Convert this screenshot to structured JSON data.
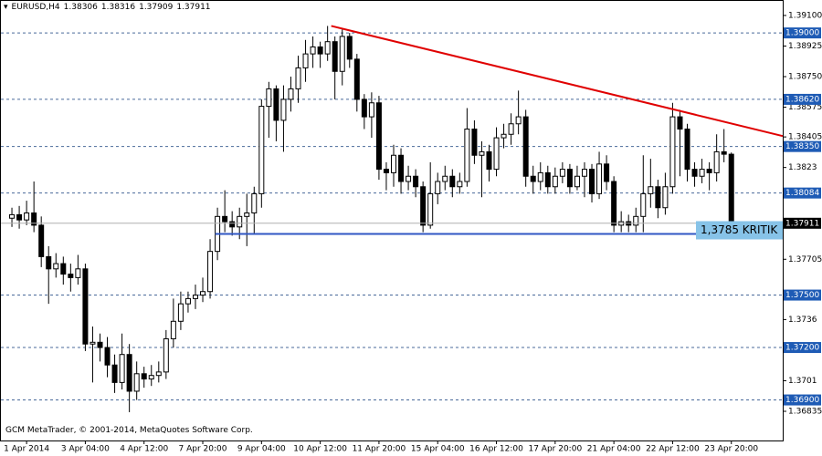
{
  "chart_data": {
    "type": "candlestick",
    "symbol": "EURUSD,H4",
    "footer": "GCM MetaTrader, © 2001-2014, MetaQuotes Software Corp.",
    "x": [
      0,
      1,
      2,
      3,
      4,
      5,
      6,
      7,
      8,
      9,
      10,
      11,
      12,
      13,
      14,
      15,
      16,
      17,
      18,
      19,
      20,
      21,
      22,
      23,
      24,
      25,
      26,
      27,
      28,
      29,
      30,
      31,
      32,
      33,
      34,
      35,
      36,
      37,
      38,
      39,
      40,
      41,
      42,
      43,
      44,
      45,
      46,
      47,
      48,
      49,
      50,
      51,
      52,
      53,
      54,
      55,
      56,
      57,
      58,
      59,
      60,
      61,
      62,
      63,
      64,
      65,
      66,
      67,
      68,
      69,
      70,
      71,
      72,
      73,
      74,
      75,
      76,
      77,
      78,
      79,
      80,
      81,
      82,
      83,
      84,
      85,
      86,
      87,
      88,
      89,
      90,
      91,
      92,
      93,
      94,
      95,
      96,
      97,
      98
    ],
    "open": [
      1.3794,
      1.3796,
      1.3793,
      1.3797,
      1.379,
      1.3772,
      1.3765,
      1.3768,
      1.3762,
      1.376,
      1.3765,
      1.3722,
      1.3723,
      1.372,
      1.371,
      1.37,
      1.3716,
      1.3695,
      1.3705,
      1.3702,
      1.3704,
      1.3706,
      1.3725,
      1.3735,
      1.3745,
      1.3748,
      1.375,
      1.3752,
      1.3775,
      1.3795,
      1.3792,
      1.3789,
      1.3795,
      1.3797,
      1.3808,
      1.3858,
      1.3868,
      1.385,
      1.3862,
      1.3868,
      1.388,
      1.3888,
      1.3892,
      1.3888,
      1.3895,
      1.3878,
      1.3898,
      1.3885,
      1.3862,
      1.3852,
      1.386,
      1.3822,
      1.382,
      1.383,
      1.3815,
      1.3818,
      1.3812,
      1.379,
      1.3808,
      1.3815,
      1.3818,
      1.3812,
      1.3815,
      1.3845,
      1.383,
      1.3832,
      1.3822,
      1.384,
      1.3842,
      1.3848,
      1.3852,
      1.3818,
      1.3815,
      1.382,
      1.3812,
      1.3818,
      1.3822,
      1.3812,
      1.3818,
      1.3822,
      1.3808,
      1.3825,
      1.3815,
      1.379,
      1.3792,
      1.379,
      1.3795,
      1.3808,
      1.3812,
      1.38,
      1.3812,
      1.3852,
      1.3845,
      1.3822,
      1.3818,
      1.3822,
      1.382,
      1.3832,
      1.38306
    ],
    "high": [
      1.38,
      1.3801,
      1.3804,
      1.3815,
      1.3795,
      1.3778,
      1.3774,
      1.3772,
      1.3768,
      1.3773,
      1.3768,
      1.3732,
      1.3728,
      1.3726,
      1.3716,
      1.3728,
      1.3722,
      1.3712,
      1.3709,
      1.371,
      1.3712,
      1.373,
      1.3748,
      1.3752,
      1.3752,
      1.3756,
      1.376,
      1.3782,
      1.38,
      1.381,
      1.3798,
      1.38,
      1.3808,
      1.3812,
      1.3862,
      1.3872,
      1.387,
      1.387,
      1.3875,
      1.3887,
      1.3896,
      1.3898,
      1.3895,
      1.3904,
      1.3898,
      1.3902,
      1.39,
      1.3888,
      1.3865,
      1.3866,
      1.3864,
      1.3826,
      1.3836,
      1.3834,
      1.3824,
      1.3822,
      1.3815,
      1.3826,
      1.382,
      1.3824,
      1.3822,
      1.382,
      1.3857,
      1.385,
      1.3838,
      1.3836,
      1.3846,
      1.3848,
      1.3854,
      1.3867,
      1.3856,
      1.3824,
      1.3826,
      1.3824,
      1.3823,
      1.3826,
      1.3825,
      1.3824,
      1.3826,
      1.3825,
      1.3832,
      1.383,
      1.3818,
      1.3798,
      1.3796,
      1.38,
      1.383,
      1.3828,
      1.3816,
      1.382,
      1.386,
      1.3856,
      1.3848,
      1.3826,
      1.3828,
      1.3826,
      1.3842,
      1.3845,
      1.38316
    ],
    "low": [
      1.3789,
      1.3788,
      1.379,
      1.3786,
      1.3766,
      1.3745,
      1.376,
      1.3756,
      1.3752,
      1.3756,
      1.3718,
      1.37,
      1.3712,
      1.3703,
      1.3694,
      1.3696,
      1.3683,
      1.369,
      1.3697,
      1.3698,
      1.37,
      1.3702,
      1.372,
      1.373,
      1.374,
      1.3742,
      1.3746,
      1.3748,
      1.377,
      1.3786,
      1.3784,
      1.3782,
      1.3778,
      1.3785,
      1.38,
      1.384,
      1.3838,
      1.3832,
      1.3855,
      1.386,
      1.3872,
      1.388,
      1.388,
      1.3884,
      1.3862,
      1.387,
      1.388,
      1.3855,
      1.3845,
      1.384,
      1.3816,
      1.381,
      1.3812,
      1.3808,
      1.381,
      1.3806,
      1.3786,
      1.3788,
      1.3802,
      1.381,
      1.3806,
      1.3808,
      1.3812,
      1.3825,
      1.3806,
      1.3815,
      1.3818,
      1.3834,
      1.3836,
      1.3842,
      1.3812,
      1.3808,
      1.381,
      1.3808,
      1.3808,
      1.3814,
      1.3808,
      1.381,
      1.3806,
      1.3803,
      1.3805,
      1.381,
      1.3786,
      1.3786,
      1.3786,
      1.3786,
      1.3786,
      1.38,
      1.3794,
      1.3796,
      1.3808,
      1.3818,
      1.3815,
      1.3812,
      1.3814,
      1.381,
      1.3815,
      1.3826,
      1.37909
    ],
    "close": [
      1.3796,
      1.3793,
      1.3797,
      1.379,
      1.3772,
      1.3765,
      1.3768,
      1.3762,
      1.376,
      1.3765,
      1.3722,
      1.3723,
      1.372,
      1.371,
      1.37,
      1.3716,
      1.3695,
      1.3705,
      1.3702,
      1.3704,
      1.3706,
      1.3725,
      1.3735,
      1.3745,
      1.3748,
      1.375,
      1.3752,
      1.3775,
      1.3795,
      1.3792,
      1.3789,
      1.3795,
      1.3797,
      1.3808,
      1.3858,
      1.3868,
      1.385,
      1.3862,
      1.3868,
      1.388,
      1.3888,
      1.3892,
      1.3888,
      1.3895,
      1.3878,
      1.3898,
      1.3885,
      1.3862,
      1.3852,
      1.386,
      1.3822,
      1.382,
      1.383,
      1.3815,
      1.3818,
      1.3812,
      1.379,
      1.3808,
      1.3815,
      1.3818,
      1.3812,
      1.3815,
      1.3845,
      1.383,
      1.3832,
      1.3822,
      1.384,
      1.3842,
      1.3848,
      1.3852,
      1.3818,
      1.3815,
      1.382,
      1.3812,
      1.3818,
      1.3822,
      1.3812,
      1.3818,
      1.3822,
      1.3808,
      1.3825,
      1.3815,
      1.379,
      1.3792,
      1.379,
      1.3795,
      1.3808,
      1.3812,
      1.38,
      1.3812,
      1.3852,
      1.3845,
      1.3822,
      1.3818,
      1.3822,
      1.382,
      1.3832,
      1.38306,
      1.37911
    ],
    "xlim": [
      -1,
      105
    ],
    "ylim": [
      1.36668,
      1.39178
    ],
    "xticks": [
      {
        "value": 2,
        "label": "1 Apr 2014"
      },
      {
        "value": 10,
        "label": "3 Apr 04:00"
      },
      {
        "value": 18,
        "label": "4 Apr 12:00"
      },
      {
        "value": 26,
        "label": "7 Apr 20:00"
      },
      {
        "value": 34,
        "label": "9 Apr 04:00"
      },
      {
        "value": 42,
        "label": "10 Apr 12:00"
      },
      {
        "value": 50,
        "label": "11 Apr 20:00"
      },
      {
        "value": 58,
        "label": "15 Apr 04:00"
      },
      {
        "value": 66,
        "label": "16 Apr 12:00"
      },
      {
        "value": 74,
        "label": "17 Apr 20:00"
      },
      {
        "value": 82,
        "label": "21 Apr 04:00"
      },
      {
        "value": 90,
        "label": "22 Apr 12:00"
      },
      {
        "value": 98,
        "label": "23 Apr 20:00"
      }
    ],
    "yticks": [
      {
        "value": 1.391,
        "label": "1.39100"
      },
      {
        "value": 1.38925,
        "label": "1.38925"
      },
      {
        "value": 1.3875,
        "label": "1.38750"
      },
      {
        "value": 1.38575,
        "label": "1.38575"
      },
      {
        "value": 1.38405,
        "label": "1.38405"
      },
      1.3823,
      1.37705,
      1.3736,
      1.3701,
      1.36835
    ],
    "levels": [
      {
        "value": 1.39,
        "label": "1.39000"
      },
      {
        "value": 1.3862,
        "label": "1.38620"
      },
      {
        "value": 1.3835,
        "label": "1.38350"
      },
      {
        "value": 1.38084,
        "label": "1.38084"
      },
      {
        "value": 1.375,
        "label": "1.37500"
      },
      {
        "value": 1.372,
        "label": "1.37200"
      },
      {
        "value": 1.369,
        "label": "1.36900"
      }
    ],
    "trendline": {
      "x": [
        43.5,
        105
      ],
      "y": [
        1.3904,
        1.3841
      ],
      "color": "#e00000"
    },
    "support": {
      "x": [
        27.7,
        105
      ],
      "value": 1.3785,
      "label": "1,3785 KRITIK",
      "color": "#3057c4"
    }
  }
}
